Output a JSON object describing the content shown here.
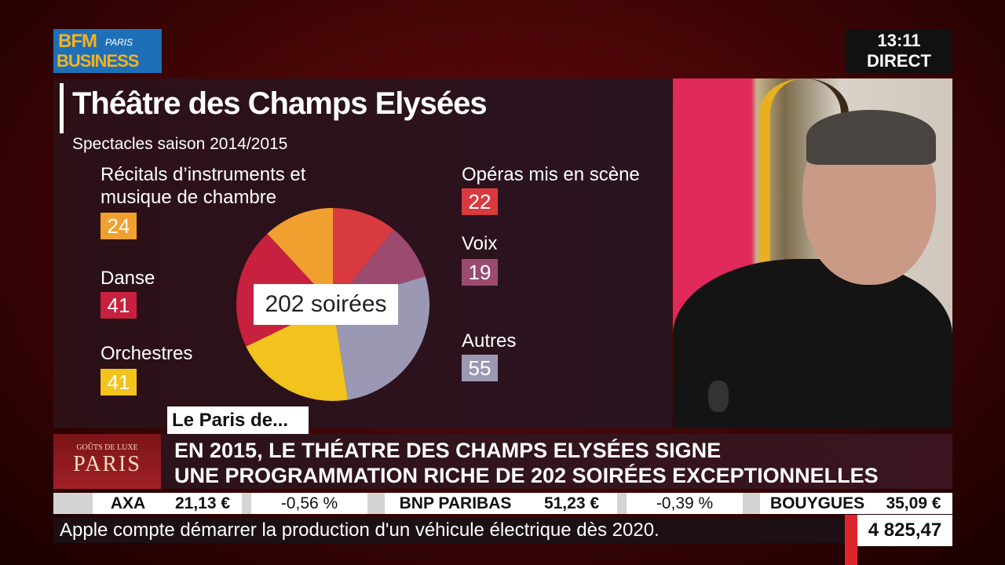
{
  "header": {
    "logo_main": "BFM",
    "logo_paris": "PARIS",
    "logo_sub": "BUSINESS",
    "time": "13:11",
    "live": "DIRECT"
  },
  "chart_data": {
    "type": "pie",
    "title": "Théâtre des Champs Elysées",
    "subtitle": "Spectacles saison 2014/2015",
    "center_label": "202 soirées",
    "categories": [
      "Opéras mis en scène",
      "Voix",
      "Autres",
      "Orchestres",
      "Danse",
      "Récitals d’instruments et musique de chambre"
    ],
    "values": [
      22,
      19,
      55,
      41,
      41,
      24
    ],
    "colors": [
      "#d93a40",
      "#9c4a70",
      "#9b98b4",
      "#f1c31c",
      "#c8203f",
      "#f0a02e"
    ]
  },
  "lower_third": {
    "tag": "Le Paris de...",
    "show_logo_top": "GOÛTS DE LUXE",
    "show_logo_main": "PARIS",
    "headline": [
      "EN 2015, LE THÉATRE DES CHAMPS ELYSÉES SIGNE",
      "UNE PROGRAMMATION RICHE DE 202 SOIRÉES EXCEPTIONNELLES"
    ]
  },
  "ticker": {
    "stocks": [
      {
        "name": "AXA",
        "price": "21,13 €",
        "change": "-0,56 %"
      },
      {
        "name": "BNP PARIBAS",
        "price": "51,23 €",
        "change": "-0,39 %"
      },
      {
        "name": "BOUYGUES",
        "price": "35,09 €"
      }
    ],
    "news": "Apple compte démarrer la production d'un véhicule électrique dès 2020.",
    "index": "4 825,47"
  }
}
